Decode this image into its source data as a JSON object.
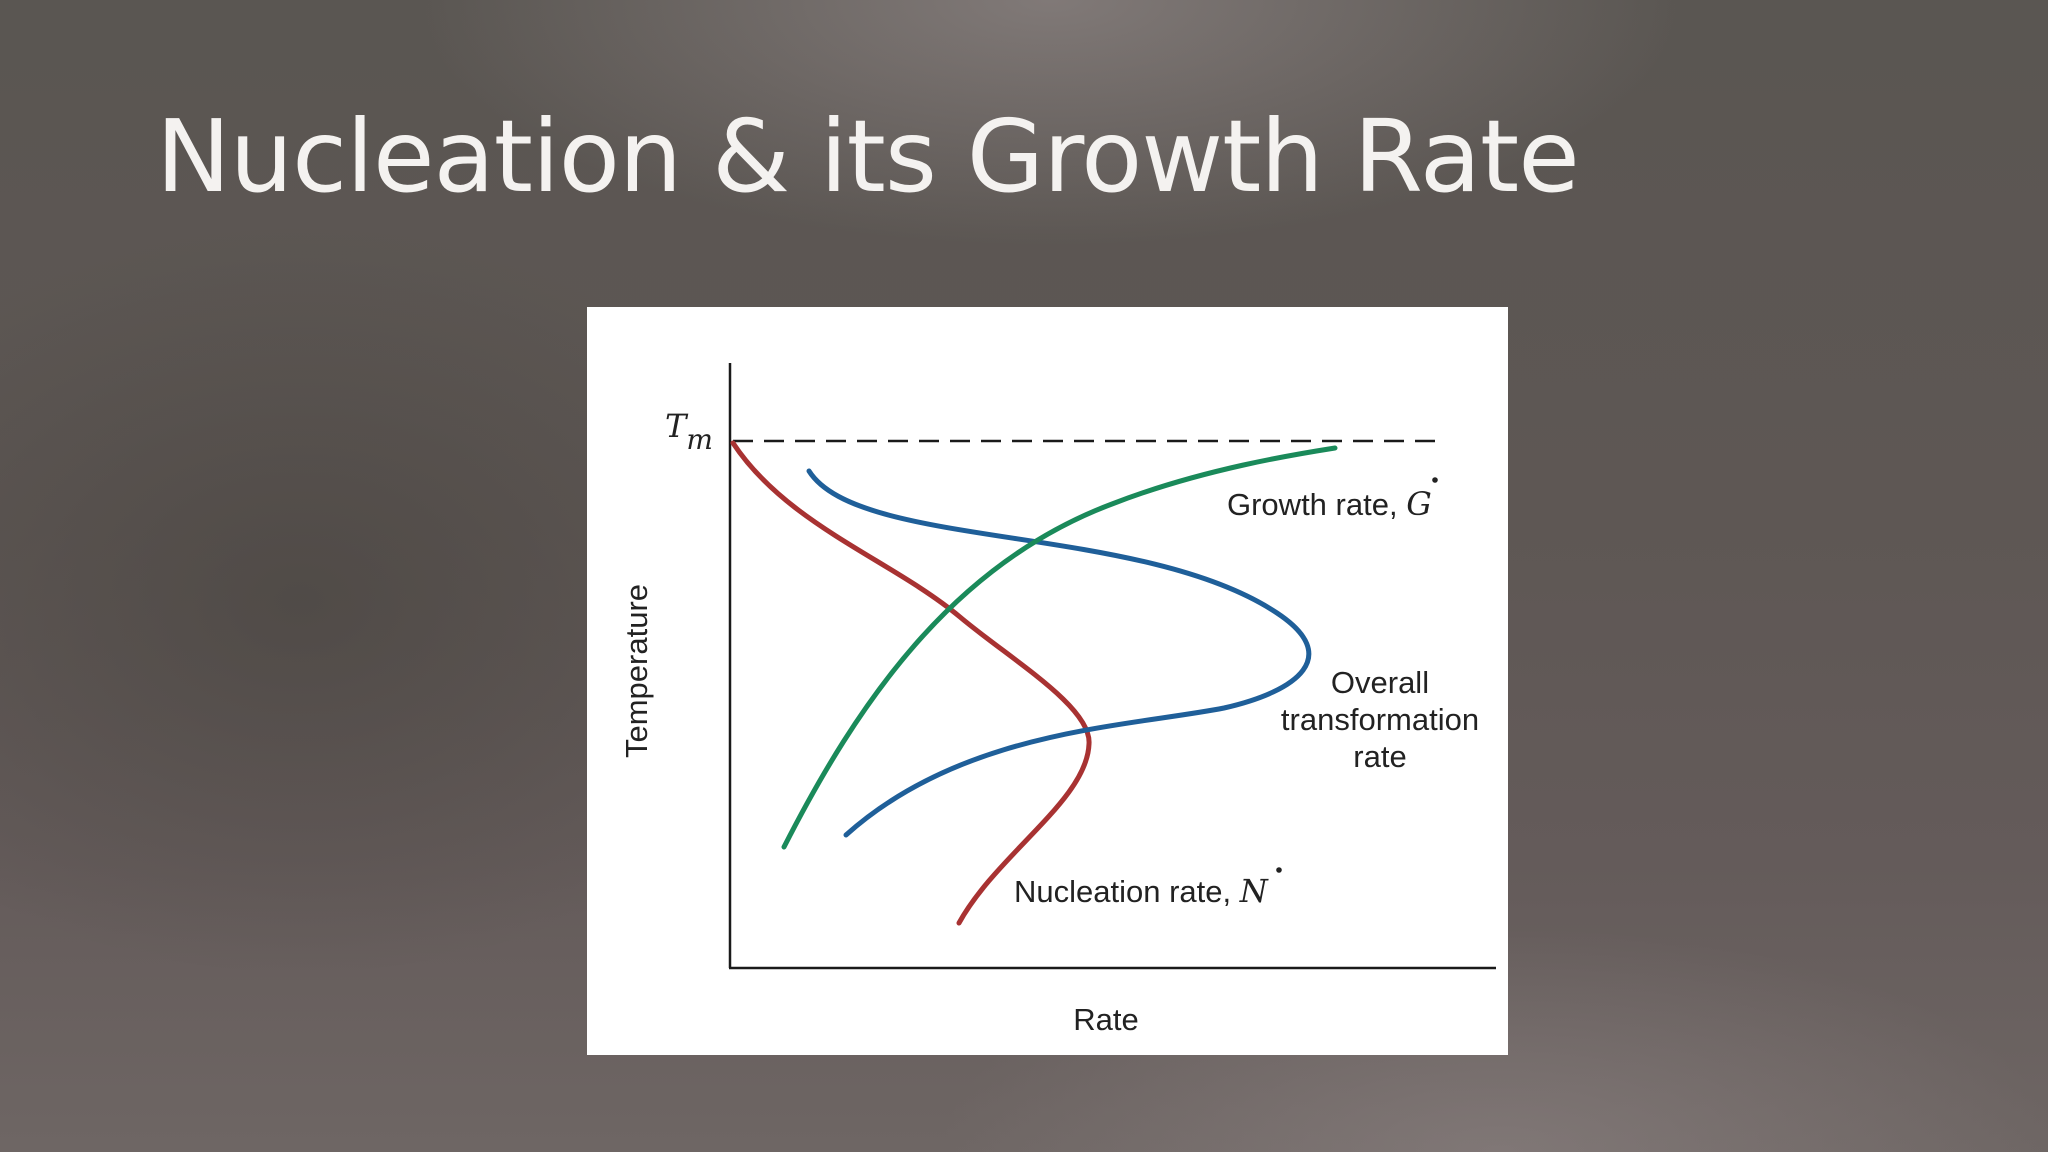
{
  "slide": {
    "title": "Nucleation & its Growth Rate"
  },
  "diagram": {
    "y_axis_label": "Temperature",
    "x_axis_label": "Rate",
    "tm_label": {
      "symbol": "T",
      "subscript": "m"
    },
    "curves": {
      "growth": {
        "label": "Growth rate, ",
        "symbol": "G",
        "color": "#1a8a5a"
      },
      "overall": {
        "label_lines": [
          "Overall",
          "transformation",
          "rate"
        ],
        "color": "#1f5f99"
      },
      "nucleation": {
        "label": "Nucleation rate, ",
        "symbol": "N",
        "color": "#a83232"
      }
    }
  }
}
